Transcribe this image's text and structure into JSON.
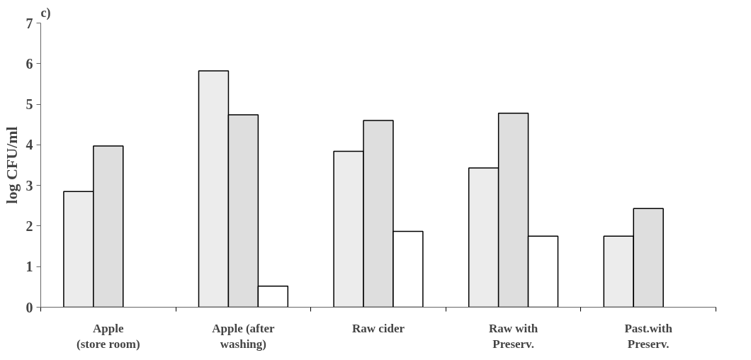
{
  "chart_data": {
    "type": "bar",
    "title": "c)",
    "ylabel": "log CFU/ml",
    "categories": [
      "Apple\n(store room)",
      "Apple (after\nwashing)",
      "Raw cider",
      "Raw with\nPreserv.",
      "Past.with\nPreserv."
    ],
    "series": [
      {
        "color": "#ececec",
        "values": [
          2.85,
          5.82,
          3.84,
          3.43,
          1.75
        ]
      },
      {
        "color": "#dedede",
        "values": [
          3.97,
          4.74,
          4.6,
          4.78,
          2.43
        ]
      },
      {
        "color": "#ffffff",
        "values": [
          null,
          0.52,
          1.87,
          1.75,
          null
        ]
      }
    ],
    "ylim": [
      0,
      7
    ],
    "yticks": [
      0,
      1,
      2,
      3,
      4,
      5,
      6,
      7
    ]
  }
}
